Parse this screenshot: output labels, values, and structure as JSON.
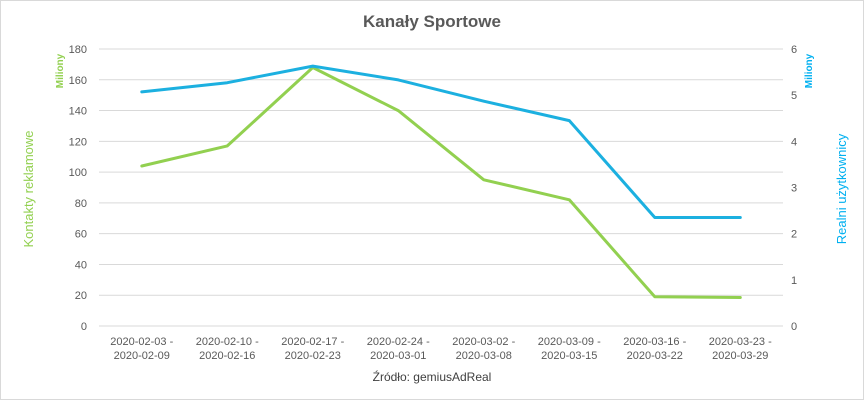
{
  "chart_data": {
    "type": "line",
    "title": "Kanały Sportowe",
    "source": "Źródło: gemiusAdReal",
    "left_axis": {
      "label": "Kontakty reklamowe",
      "unit": "Miliony",
      "range": [
        0,
        180
      ],
      "ticks": [
        "0",
        "20",
        "40",
        "60",
        "80",
        "100",
        "120",
        "140",
        "160",
        "180"
      ],
      "color": "#92d050"
    },
    "right_axis": {
      "label": "Realni użytkownicy",
      "unit": "Miliony",
      "range": [
        0,
        6
      ],
      "ticks": [
        "0",
        "1",
        "2",
        "3",
        "4",
        "5",
        "6"
      ],
      "color": "#00b0f0"
    },
    "categories": [
      [
        "2020-02-03 -",
        "2020-02-09"
      ],
      [
        "2020-02-10 -",
        "2020-02-16"
      ],
      [
        "2020-02-17 -",
        "2020-02-23"
      ],
      [
        "2020-02-24 -",
        "2020-03-01"
      ],
      [
        "2020-03-02 -",
        "2020-03-08"
      ],
      [
        "2020-03-09 -",
        "2020-03-15"
      ],
      [
        "2020-03-16 -",
        "2020-03-22"
      ],
      [
        "2020-03-23 -",
        "2020-03-29"
      ]
    ],
    "series": [
      {
        "axis": "left",
        "color": "#92d050",
        "values": [
          104,
          117,
          168,
          140,
          95,
          82,
          19,
          18.5
        ]
      },
      {
        "axis": "right",
        "color": "#1cb0e0",
        "values": [
          5.07,
          5.27,
          5.63,
          5.33,
          4.87,
          4.45,
          2.35,
          2.35
        ]
      }
    ],
    "grid": true
  }
}
